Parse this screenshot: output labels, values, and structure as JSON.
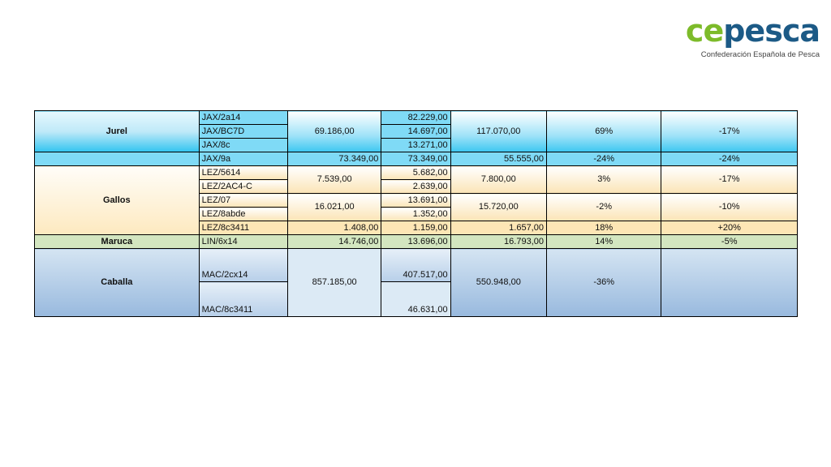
{
  "logo": {
    "ce": "ce",
    "pesca": "pesca",
    "subtitle": "Confederación Española de Pesca",
    "colors": {
      "ce": "#7dbb2a",
      "pesca": "#1c5a86"
    }
  },
  "table": {
    "jurel": {
      "name": "Jurel",
      "codes": [
        "JAX/2a14",
        "JAX/BC7D",
        "JAX/8c",
        "JAX/9a"
      ],
      "col3_group": "69.186,00",
      "col4": [
        "82.229,00",
        "14.697,00",
        "13.271,00"
      ],
      "col5_group": "117.070,00",
      "col6_group": "69%",
      "col7_group": "-17%",
      "last": {
        "col3": "73.349,00",
        "col4": "73.349,00",
        "col5": "55.555,00",
        "col6": "-24%",
        "col7": "-24%"
      }
    },
    "gallos": {
      "name": "Gallos",
      "codes": [
        "LEZ/5614",
        "LEZ/2AC4-C",
        "LEZ/07",
        "LEZ/8abde",
        "LEZ/8c3411"
      ],
      "group1": {
        "col3": "7.539,00",
        "col4": [
          "5.682,00",
          "2.639,00"
        ],
        "col5": "7.800,00",
        "col6": "3%",
        "col7": "-17%"
      },
      "group2": {
        "col3": "16.021,00",
        "col4": [
          "13.691,00",
          "1.352,00"
        ],
        "col5": "15.720,00",
        "col6": "-2%",
        "col7": "-10%"
      },
      "last": {
        "col3": "1.408,00",
        "col4": "1.159,00",
        "col5": "1.657,00",
        "col6": "18%",
        "col7": "+20%"
      }
    },
    "maruca": {
      "name": "Maruca",
      "code": "LIN/6x14",
      "col3": "14.746,00",
      "col4": "13.696,00",
      "col5": "16.793,00",
      "col6": "14%",
      "col7": "-5%"
    },
    "caballa": {
      "name": "Caballa",
      "codes": [
        "MAC/2cx14",
        "MAC/8c3411"
      ],
      "col3": "857.185,00",
      "col4": [
        "407.517,00",
        "46.631,00"
      ],
      "col5": "550.948,00",
      "col6": "-36%",
      "col7": ""
    }
  }
}
